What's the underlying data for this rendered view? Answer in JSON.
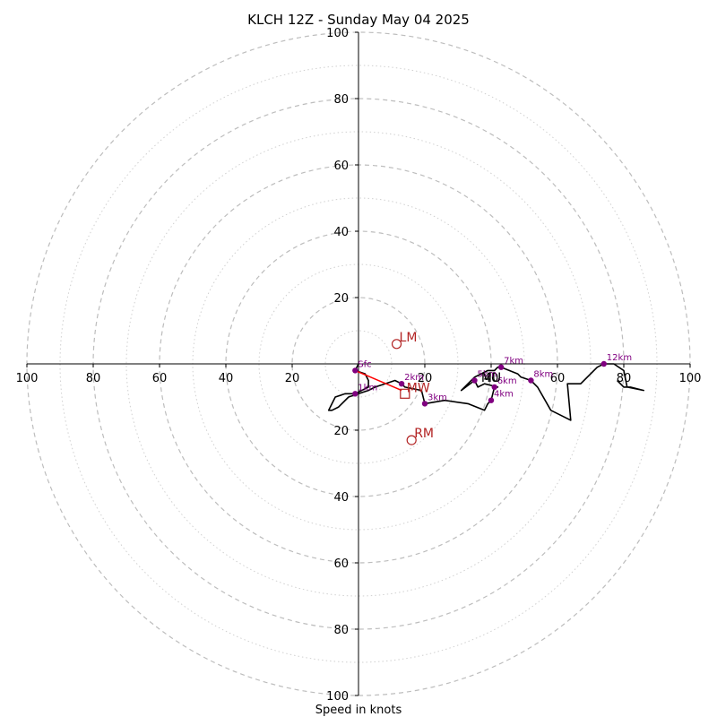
{
  "chart_data": {
    "type": "hodograph",
    "title": "KLCH 12Z - Sunday May 04 2025",
    "xlabel": "Speed in knots",
    "ring_spacing": 10,
    "max_speed": 100,
    "tick_values": [
      20,
      40,
      60,
      80,
      100
    ],
    "x_tick_labels": [
      "100",
      "80",
      "60",
      "40",
      "20",
      "20",
      "40",
      "60",
      "80",
      "100"
    ],
    "y_tick_labels": [
      "100",
      "80",
      "60",
      "40",
      "20",
      "20",
      "40",
      "60",
      "80",
      "100"
    ],
    "colors": {
      "trace": "#000000",
      "height_marker": "#800080",
      "motion_marker": "#b22222",
      "shear_line": "#ff0000",
      "major_ring": "#bdbdbd",
      "minor_ring": "#d0d0d0"
    },
    "wind_profile": [
      [
        0,
        0
      ],
      [
        -1,
        -2
      ],
      [
        2,
        -3
      ],
      [
        3,
        -5
      ],
      [
        3,
        -7
      ],
      [
        -1,
        -9
      ],
      [
        -4,
        -9
      ],
      [
        -7,
        -10
      ],
      [
        -8,
        -12
      ],
      [
        -9,
        -14
      ],
      [
        -8,
        -14
      ],
      [
        -6,
        -13
      ],
      [
        -3,
        -10
      ],
      [
        0,
        -9
      ],
      [
        3,
        -8
      ],
      [
        5,
        -7
      ],
      [
        8,
        -6
      ],
      [
        11,
        -5
      ],
      [
        13,
        -6
      ],
      [
        14,
        -7
      ],
      [
        19,
        -8
      ],
      [
        20,
        -12
      ],
      [
        26,
        -11
      ],
      [
        33,
        -12
      ],
      [
        38,
        -14
      ],
      [
        39,
        -12
      ],
      [
        40,
        -11
      ],
      [
        41,
        -7
      ],
      [
        42,
        -7
      ],
      [
        38,
        -6
      ],
      [
        36,
        -7
      ],
      [
        35,
        -5
      ],
      [
        31,
        -8
      ],
      [
        33,
        -6
      ],
      [
        35,
        -4
      ],
      [
        37,
        -3
      ],
      [
        39,
        -2
      ],
      [
        41,
        -2
      ],
      [
        42,
        -1
      ],
      [
        43,
        -1
      ],
      [
        48,
        -3
      ],
      [
        49,
        -4
      ],
      [
        52,
        -5
      ],
      [
        54,
        -7
      ],
      [
        58,
        -14
      ],
      [
        64,
        -17
      ],
      [
        63,
        -6
      ],
      [
        67,
        -6
      ],
      [
        72,
        -1
      ],
      [
        74,
        0
      ],
      [
        77,
        0
      ],
      [
        80,
        -2
      ],
      [
        81,
        -7
      ],
      [
        86,
        -8
      ],
      [
        82,
        -7
      ],
      [
        80,
        -7
      ],
      [
        78,
        -5
      ]
    ],
    "height_markers": [
      {
        "label": "Sfc",
        "u": -1,
        "v": -2
      },
      {
        "label": "1km",
        "u": -1,
        "v": -9
      },
      {
        "label": "2km",
        "u": 13,
        "v": -6
      },
      {
        "label": "3km",
        "u": 20,
        "v": -12
      },
      {
        "label": "4km",
        "u": 40,
        "v": -11
      },
      {
        "label": "5km",
        "u": 35,
        "v": -5
      },
      {
        "label": "6km",
        "u": 41,
        "v": -7
      },
      {
        "label": "7km",
        "u": 43,
        "v": -1
      },
      {
        "label": "8km",
        "u": 52,
        "v": -5
      },
      {
        "label": "12km",
        "u": 74,
        "v": 0
      }
    ],
    "storm_motion": [
      {
        "label": "LM",
        "u": 11.5,
        "v": 6,
        "marker": "circle"
      },
      {
        "label": "RM",
        "u": 16,
        "v": -23,
        "marker": "circle"
      },
      {
        "label": "MW",
        "u": 14,
        "v": -9,
        "marker": "square"
      }
    ],
    "mean_wind_marker": {
      "label": "MU",
      "u": 40,
      "v": -4
    },
    "shear_vector": {
      "from": [
        -1,
        -2
      ],
      "to": [
        13,
        -8
      ]
    }
  }
}
